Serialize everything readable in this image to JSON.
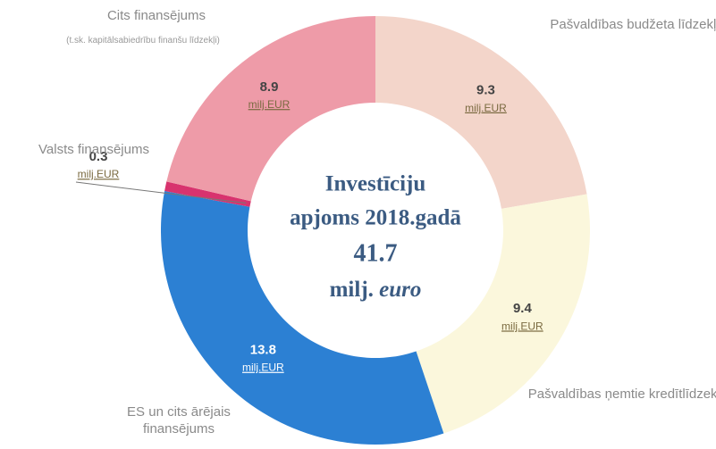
{
  "chart_data": {
    "type": "donut",
    "categories": [
      "Pašvaldības budžeta līdzekļi",
      "Pašvaldības ņemtie kredītlīdzekļi",
      "ES un cits ārējais finansējums",
      "Valsts finansējums",
      "Cits finansējums"
    ],
    "values": [
      9.3,
      9.4,
      13.8,
      0.3,
      8.9
    ],
    "colors": [
      "#f3d5ca",
      "#fbf7dc",
      "#2c80d3",
      "#d8336e",
      "#ee9ba8"
    ],
    "unit": "milj.EUR",
    "annotations": [
      {
        "text": "(t.sk. kapitālsabiedrību finanšu līdzekļi)"
      }
    ],
    "center_title": [
      "Investīciju",
      "apjoms 2018.gadā"
    ],
    "total": 41.7,
    "total_unit": [
      "milj.",
      "euro"
    ]
  }
}
